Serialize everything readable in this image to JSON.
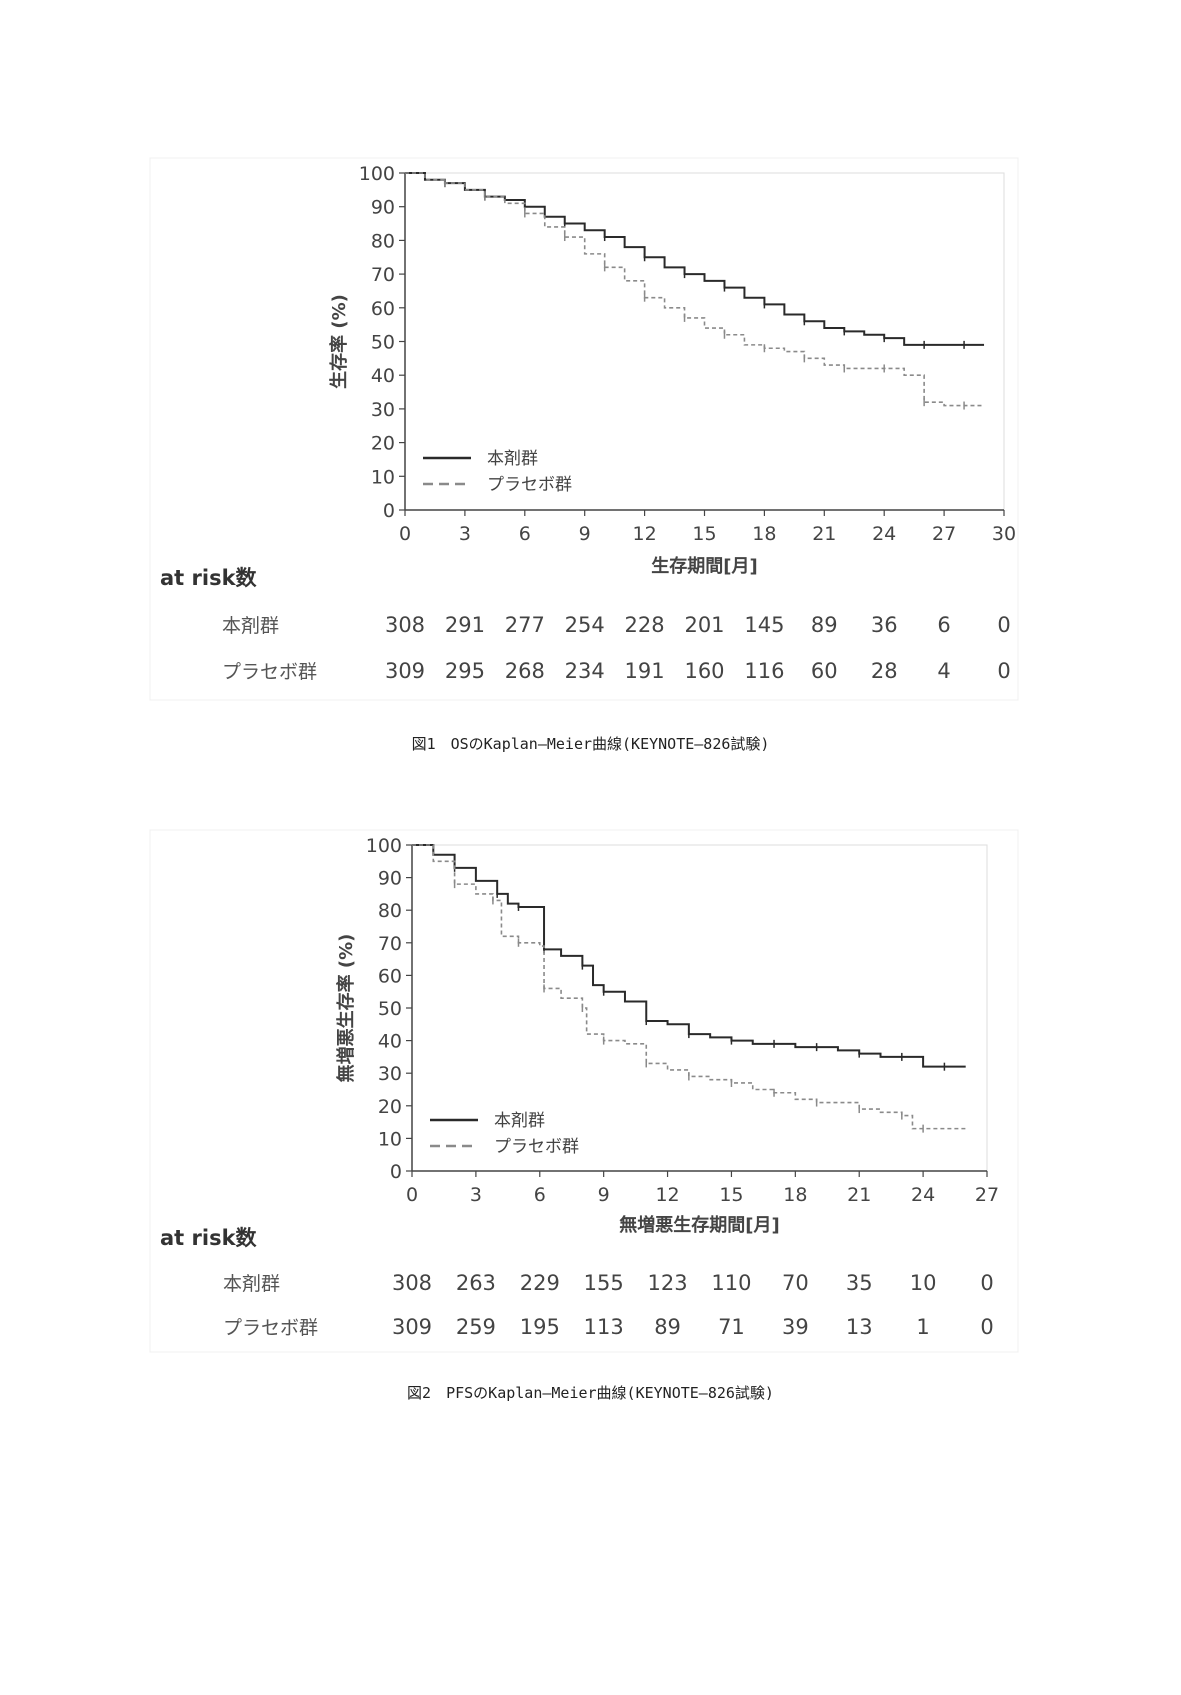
{
  "chart_data": [
    {
      "type": "line",
      "subtype": "kaplan-meier",
      "title": "",
      "ylabel": "生存率 (%)",
      "xlabel": "生存期間[月]",
      "xlim": [
        0,
        30
      ],
      "ylim": [
        0,
        100
      ],
      "x_ticks": [
        "0",
        "3",
        "6",
        "9",
        "12",
        "15",
        "18",
        "21",
        "24",
        "27",
        "30"
      ],
      "y_ticks": [
        "0",
        "10",
        "20",
        "30",
        "40",
        "50",
        "60",
        "70",
        "80",
        "90",
        "100"
      ],
      "legend": {
        "position": "bottom-left",
        "entries": [
          "本剤群",
          "プラセボ群"
        ]
      },
      "series": [
        {
          "name": "本剤群",
          "style": "solid",
          "color": "#2a2a2a",
          "x": [
            0,
            1,
            2,
            3,
            4,
            5,
            6,
            7,
            8,
            9,
            10,
            11,
            12,
            13,
            14,
            15,
            16,
            17,
            18,
            19,
            20,
            21,
            22,
            23,
            24,
            25,
            26,
            27,
            28,
            29
          ],
          "y": [
            100,
            98,
            97,
            95,
            93,
            92,
            90,
            87,
            85,
            83,
            81,
            78,
            75,
            72,
            70,
            68,
            66,
            63,
            61,
            58,
            56,
            54,
            53,
            52,
            51,
            49,
            49,
            49,
            49,
            49
          ]
        },
        {
          "name": "プラセボ群",
          "style": "dashed",
          "color": "#8a8a8a",
          "x": [
            0,
            1,
            2,
            3,
            4,
            5,
            6,
            7,
            8,
            9,
            10,
            11,
            12,
            13,
            14,
            15,
            16,
            17,
            18,
            19,
            20,
            21,
            22,
            23,
            24,
            25,
            26,
            27,
            28,
            29
          ],
          "y": [
            100,
            98,
            97,
            95,
            93,
            91,
            88,
            84,
            81,
            76,
            72,
            68,
            63,
            60,
            57,
            54,
            52,
            49,
            48,
            47,
            45,
            43,
            42,
            42,
            42,
            40,
            32,
            31,
            31,
            31
          ]
        }
      ],
      "at_risk": {
        "title": "at risk数",
        "times": [
          "0",
          "3",
          "6",
          "9",
          "12",
          "15",
          "18",
          "21",
          "24",
          "27",
          "30"
        ],
        "rows": [
          {
            "label": "本剤群",
            "values": [
              "308",
              "291",
              "277",
              "254",
              "228",
              "201",
              "145",
              "89",
              "36",
              "6",
              "0"
            ]
          },
          {
            "label": "プラセボ群",
            "values": [
              "309",
              "295",
              "268",
              "234",
              "191",
              "160",
              "116",
              "60",
              "28",
              "4",
              "0"
            ]
          }
        ]
      },
      "caption": "図1　OSのKaplan―Meier曲線(KEYNOTE―826試験)"
    },
    {
      "type": "line",
      "subtype": "kaplan-meier",
      "title": "",
      "ylabel": "無増悪生存率 (%)",
      "xlabel": "無増悪生存期間[月]",
      "xlim": [
        0,
        27
      ],
      "ylim": [
        0,
        100
      ],
      "x_ticks": [
        "0",
        "3",
        "6",
        "9",
        "12",
        "15",
        "18",
        "21",
        "24",
        "27"
      ],
      "y_ticks": [
        "0",
        "10",
        "20",
        "30",
        "40",
        "50",
        "60",
        "70",
        "80",
        "90",
        "100"
      ],
      "legend": {
        "position": "bottom-left",
        "entries": [
          "本剤群",
          "プラセボ群"
        ]
      },
      "series": [
        {
          "name": "本剤群",
          "style": "solid",
          "color": "#2a2a2a",
          "x": [
            0,
            1,
            2,
            3,
            4,
            4.5,
            5,
            6,
            6.2,
            7,
            8,
            8.5,
            9,
            10,
            11,
            12,
            13,
            14,
            15,
            16,
            17,
            18,
            19,
            20,
            21,
            22,
            23,
            24,
            25,
            26
          ],
          "y": [
            100,
            97,
            93,
            89,
            85,
            82,
            81,
            81,
            68,
            66,
            63,
            57,
            55,
            52,
            46,
            45,
            42,
            41,
            40,
            39,
            39,
            38,
            38,
            37,
            36,
            35,
            35,
            32,
            32,
            32
          ]
        },
        {
          "name": "プラセボ群",
          "style": "dashed",
          "color": "#8a8a8a",
          "x": [
            0,
            1,
            2,
            3,
            3.8,
            4.2,
            5,
            6,
            6.2,
            7,
            8,
            8.2,
            9,
            10,
            11,
            12,
            13,
            14,
            15,
            16,
            17,
            18,
            19,
            20,
            21,
            22,
            23,
            23.5,
            24,
            26
          ],
          "y": [
            100,
            95,
            88,
            85,
            83,
            72,
            70,
            69,
            56,
            53,
            50,
            42,
            40,
            39,
            33,
            31,
            29,
            28,
            27,
            25,
            24,
            22,
            21,
            21,
            19,
            18,
            17,
            13,
            13,
            13
          ]
        }
      ],
      "at_risk": {
        "title": "at risk数",
        "times": [
          "0",
          "3",
          "6",
          "9",
          "12",
          "15",
          "18",
          "21",
          "24",
          "27"
        ],
        "rows": [
          {
            "label": "本剤群",
            "values": [
              "308",
              "263",
              "229",
              "155",
              "123",
              "110",
              "70",
              "35",
              "10",
              "0"
            ]
          },
          {
            "label": "プラセボ群",
            "values": [
              "309",
              "259",
              "195",
              "113",
              "89",
              "71",
              "39",
              "13",
              "1",
              "0"
            ]
          }
        ]
      },
      "caption": "図2　PFSのKaplan―Meier曲線(KEYNOTE―826試験)"
    }
  ]
}
